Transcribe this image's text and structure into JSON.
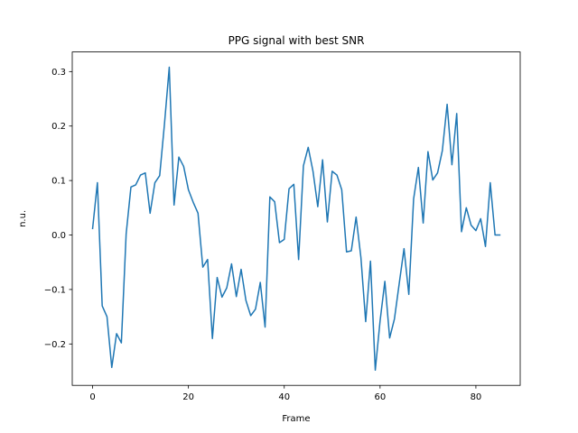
{
  "chart_data": {
    "type": "line",
    "title": "PPG signal with best SNR",
    "xlabel": "Frame",
    "ylabel": "n.u.",
    "xlim": [
      -4.25,
      89.25
    ],
    "ylim": [
      -0.276,
      0.336
    ],
    "xticks": [
      0,
      20,
      40,
      60,
      80
    ],
    "xtick_labels": [
      "0",
      "20",
      "40",
      "60",
      "80"
    ],
    "yticks": [
      -0.2,
      -0.1,
      0.0,
      0.1,
      0.2,
      0.3
    ],
    "ytick_labels": [
      "−0.2",
      "−0.1",
      "0.0",
      "0.1",
      "0.2",
      "0.3"
    ],
    "grid": false,
    "series": [
      {
        "color": "#1f77b4",
        "x": [
          0,
          1,
          2,
          3,
          4,
          5,
          6,
          7,
          8,
          9,
          10,
          11,
          12,
          13,
          14,
          15,
          16,
          17,
          18,
          19,
          20,
          21,
          22,
          23,
          24,
          25,
          26,
          27,
          28,
          29,
          30,
          31,
          32,
          33,
          34,
          35,
          36,
          37,
          38,
          39,
          40,
          41,
          42,
          43,
          44,
          45,
          46,
          47,
          48,
          49,
          50,
          51,
          52,
          53,
          54,
          55,
          56,
          57,
          58,
          59,
          60,
          61,
          62,
          63,
          64,
          65,
          66,
          67,
          68,
          69,
          70,
          71,
          72,
          73,
          74,
          75,
          76,
          77,
          78,
          79,
          80,
          81,
          82,
          83,
          84,
          85
        ],
        "y": [
          0.012,
          0.096,
          -0.13,
          -0.15,
          -0.243,
          -0.181,
          -0.198,
          0.002,
          0.088,
          0.092,
          0.11,
          0.114,
          0.04,
          0.096,
          0.109,
          0.204,
          0.308,
          0.055,
          0.143,
          0.126,
          0.083,
          0.06,
          0.04,
          -0.059,
          -0.045,
          -0.19,
          -0.078,
          -0.114,
          -0.097,
          -0.053,
          -0.113,
          -0.063,
          -0.12,
          -0.148,
          -0.136,
          -0.087,
          -0.169,
          0.07,
          0.061,
          -0.014,
          -0.008,
          0.085,
          0.093,
          -0.045,
          0.127,
          0.161,
          0.117,
          0.052,
          0.138,
          0.024,
          0.117,
          0.11,
          0.083,
          -0.031,
          -0.029,
          0.033,
          -0.041,
          -0.159,
          -0.048,
          -0.248,
          -0.158,
          -0.085,
          -0.189,
          -0.154,
          -0.089,
          -0.025,
          -0.109,
          0.066,
          0.124,
          0.022,
          0.153,
          0.101,
          0.114,
          0.155,
          0.24,
          0.129,
          0.223,
          0.006,
          0.05,
          0.018,
          0.008,
          0.03,
          -0.021,
          0.096,
          0.0,
          0.0
        ]
      }
    ]
  }
}
